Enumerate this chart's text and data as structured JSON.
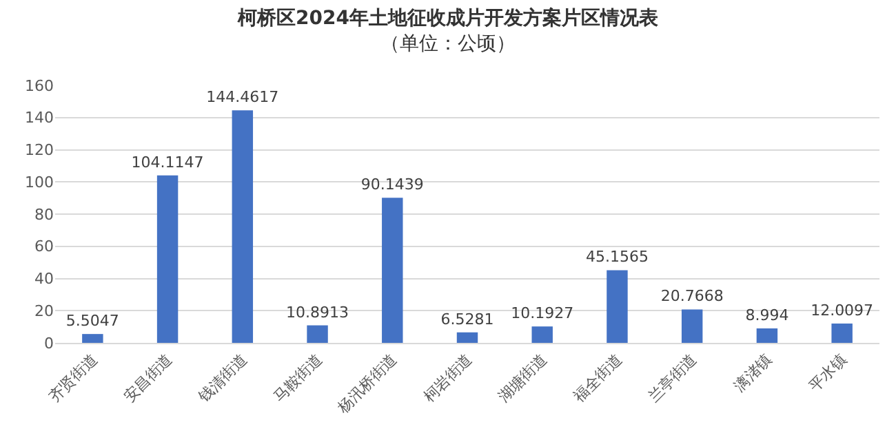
{
  "chart_data": {
    "type": "bar",
    "title": "柯桥区2024年土地征收成片开发方案片区情况表",
    "subtitle": "（单位：公顷）",
    "categories": [
      "齐贤街道",
      "安昌街道",
      "钱清街道",
      "马鞍街道",
      "杨汛桥街道",
      "柯岩街道",
      "湖塘街道",
      "福全街道",
      "兰亭街道",
      "漓渚镇",
      "平水镇"
    ],
    "values": [
      5.5047,
      104.1147,
      144.4617,
      10.8913,
      90.1439,
      6.5281,
      10.1927,
      45.1565,
      20.7668,
      8.994,
      12.0097
    ],
    "color": "#4472c4",
    "ylim": [
      0,
      160
    ],
    "yticks": [
      0,
      20,
      40,
      60,
      80,
      100,
      120,
      140,
      160
    ],
    "grid": "y",
    "data_labels": true,
    "legend": false
  }
}
